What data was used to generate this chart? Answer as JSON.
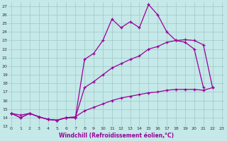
{
  "xlabel": "Windchill (Refroidissement éolien,°C)",
  "x_ticks": [
    0,
    1,
    2,
    3,
    4,
    5,
    6,
    7,
    8,
    9,
    10,
    11,
    12,
    13,
    14,
    15,
    16,
    17,
    18,
    19,
    20,
    21,
    22,
    23
  ],
  "ylim": [
    13,
    27.5
  ],
  "xlim": [
    -0.3,
    23.3
  ],
  "bg_color": "#c5e8e8",
  "grid_color": "#a0c8c8",
  "line_color": "#990099",
  "line1_y": [
    14.5,
    14.0,
    14.5,
    14.1,
    13.8,
    13.7,
    14.0,
    14.0,
    20.8,
    21.5,
    23.0,
    25.5,
    24.5,
    25.2,
    24.5,
    27.2,
    26.0,
    24.0,
    23.0,
    22.8,
    22.0,
    17.5,
    null,
    null
  ],
  "line2_y": [
    14.5,
    14.0,
    14.5,
    14.1,
    13.8,
    13.7,
    14.0,
    14.0,
    17.5,
    18.2,
    19.0,
    19.8,
    20.3,
    20.8,
    21.2,
    22.0,
    22.3,
    22.8,
    23.0,
    23.1,
    23.0,
    22.5,
    17.5,
    null
  ],
  "line3_y": [
    14.5,
    14.3,
    14.5,
    14.1,
    13.8,
    13.7,
    14.0,
    14.1,
    14.8,
    15.2,
    15.6,
    16.0,
    16.3,
    16.5,
    16.7,
    16.9,
    17.0,
    17.2,
    17.3,
    17.3,
    17.3,
    17.2,
    17.5,
    null
  ]
}
